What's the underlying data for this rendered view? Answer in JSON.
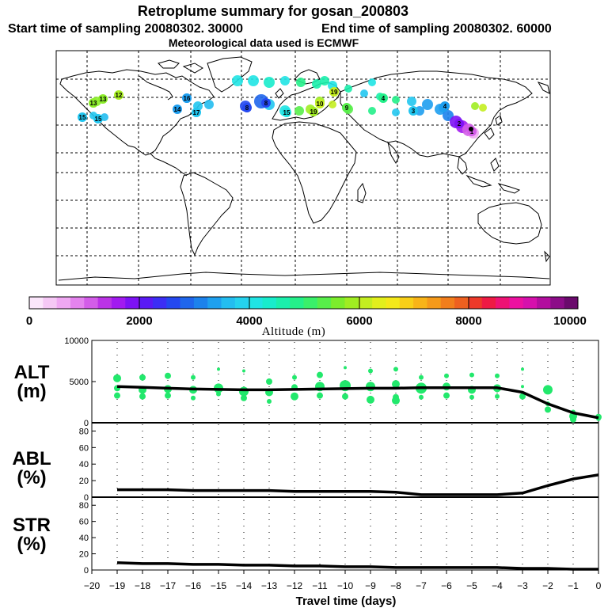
{
  "header": {
    "title": "Retroplume summary for gosan_200803",
    "start_label": "Start time of sampling 20080302. 30000",
    "end_label": "End time of sampling 20080302. 60000",
    "met_label": "Meteorological data used is ECMWF"
  },
  "colorbar": {
    "label": "Altitude (m)",
    "range": [
      0,
      10000
    ],
    "ticks": [
      "0",
      "2000",
      "4000",
      "6000",
      "8000",
      "10000"
    ],
    "colors": [
      "#fbe6fb",
      "#f5c8f5",
      "#efa8f2",
      "#e483ee",
      "#d35de8",
      "#bb33e6",
      "#a21af0",
      "#7d12f5",
      "#5a1af5",
      "#3c2ef5",
      "#2448f0",
      "#1f66ec",
      "#1c82ec",
      "#1ea0ef",
      "#23bdf0",
      "#25d2ee",
      "#20e4e4",
      "#18eccc",
      "#1aefac",
      "#24f08a",
      "#3af06a",
      "#58ee4a",
      "#7ced2c",
      "#a0ed22",
      "#c4ee20",
      "#e2ef1c",
      "#f4e81a",
      "#f8cf18",
      "#f8b418",
      "#f59a1a",
      "#f27e1c",
      "#ee6020",
      "#ed3a2a",
      "#ee1a44",
      "#ee1274",
      "#ec10a0",
      "#d610ac",
      "#b20e9e",
      "#8c0c88",
      "#6a0a6c"
    ]
  },
  "map": {
    "receptor": "gosan",
    "labels": [
      {
        "text": "13",
        "c": "#8ced2a"
      },
      {
        "text": "13",
        "c": "#8ced2a"
      },
      {
        "text": "12",
        "c": "#a8ee22"
      },
      {
        "text": "15",
        "c": "#22c6f0"
      },
      {
        "text": "15",
        "c": "#22c6f0"
      },
      {
        "text": "16",
        "c": "#1e9eef"
      },
      {
        "text": "14",
        "c": "#1e9eef"
      },
      {
        "text": "17",
        "c": "#22c6f0"
      },
      {
        "text": "8",
        "c": "#2448f0"
      },
      {
        "text": "8",
        "c": "#2448f0"
      },
      {
        "text": "15",
        "c": "#20e4e4"
      },
      {
        "text": "19",
        "c": "#a0ed22"
      },
      {
        "text": "10",
        "c": "#c4ee20"
      },
      {
        "text": "9",
        "c": "#58ee4a"
      },
      {
        "text": "4",
        "c": "#24f08a"
      },
      {
        "text": "3",
        "c": "#22c6f0"
      },
      {
        "text": "4",
        "c": "#1e9eef"
      },
      {
        "text": "2",
        "c": "#7d12f5"
      },
      {
        "text": "1",
        "c": "#d35de8"
      },
      {
        "text": "19",
        "c": "#c4ee20"
      }
    ]
  },
  "chart_data": [
    {
      "type": "scatter",
      "name": "ALT",
      "ylabel": "ALT (m)",
      "ylim": [
        0,
        10000
      ],
      "yticks": [
        "0",
        "5000",
        "10000"
      ],
      "x": [
        -19,
        -18,
        -17,
        -16,
        -15,
        -14,
        -13,
        -12,
        -11,
        -10,
        -9,
        -8,
        -7,
        -6,
        -5,
        -4,
        -3,
        -2,
        -1,
        0
      ],
      "mean_line": [
        4400,
        4300,
        4200,
        4100,
        4050,
        4000,
        4000,
        4050,
        4100,
        4150,
        4200,
        4200,
        4250,
        4250,
        4250,
        4250,
        3700,
        2300,
        1200,
        600
      ],
      "points": [
        [
          -19,
          5400,
          5
        ],
        [
          -19,
          4200,
          4
        ],
        [
          -19,
          3300,
          4
        ],
        [
          -18,
          5500,
          4
        ],
        [
          -18,
          4000,
          5
        ],
        [
          -18,
          3200,
          4
        ],
        [
          -17,
          5700,
          4
        ],
        [
          -17,
          4100,
          5
        ],
        [
          -17,
          3300,
          4
        ],
        [
          -16,
          5500,
          3
        ],
        [
          -16,
          4000,
          5
        ],
        [
          -16,
          3000,
          3
        ],
        [
          -15,
          6500,
          2
        ],
        [
          -15,
          4200,
          6
        ],
        [
          -15,
          3500,
          3
        ],
        [
          -14,
          6300,
          2
        ],
        [
          -14,
          3800,
          6
        ],
        [
          -14,
          3000,
          4
        ],
        [
          -13,
          5000,
          4
        ],
        [
          -13,
          3700,
          5
        ],
        [
          -13,
          2600,
          3
        ],
        [
          -12,
          5500,
          3
        ],
        [
          -12,
          4300,
          4
        ],
        [
          -12,
          3200,
          5
        ],
        [
          -11,
          5800,
          4
        ],
        [
          -11,
          4400,
          6
        ],
        [
          -11,
          3300,
          4
        ],
        [
          -10,
          6700,
          2
        ],
        [
          -10,
          4500,
          7
        ],
        [
          -10,
          3200,
          4
        ],
        [
          -9,
          6300,
          3
        ],
        [
          -9,
          4400,
          6
        ],
        [
          -9,
          2800,
          5
        ],
        [
          -8,
          6500,
          3
        ],
        [
          -8,
          4700,
          5
        ],
        [
          -8,
          3100,
          4
        ],
        [
          -8,
          2700,
          5
        ],
        [
          -7,
          5500,
          3
        ],
        [
          -7,
          4200,
          7
        ],
        [
          -7,
          3100,
          3
        ],
        [
          -6,
          5700,
          3
        ],
        [
          -6,
          4400,
          5
        ],
        [
          -6,
          3300,
          4
        ],
        [
          -5,
          5800,
          3
        ],
        [
          -5,
          4000,
          5
        ],
        [
          -5,
          3100,
          3
        ],
        [
          -4,
          5700,
          3
        ],
        [
          -4,
          4200,
          5
        ],
        [
          -4,
          3200,
          3
        ],
        [
          -3,
          6500,
          2
        ],
        [
          -3,
          4400,
          2
        ],
        [
          -3,
          3200,
          4
        ],
        [
          -2,
          4000,
          6
        ],
        [
          -2,
          2300,
          3
        ],
        [
          -2,
          1600,
          4
        ],
        [
          -1,
          1300,
          3
        ],
        [
          -1,
          800,
          5
        ],
        [
          -1,
          400,
          4
        ],
        [
          0,
          700,
          4
        ],
        [
          0,
          500,
          3
        ]
      ]
    },
    {
      "type": "line",
      "name": "ABL",
      "ylabel": "ABL (%)",
      "ylim": [
        0,
        90
      ],
      "yticks": [
        "0",
        "20",
        "40",
        "60",
        "80"
      ],
      "x": [
        -19,
        -18,
        -17,
        -16,
        -15,
        -14,
        -13,
        -12,
        -11,
        -10,
        -9,
        -8,
        -7,
        -6,
        -5,
        -4,
        -3,
        -2,
        -1,
        0
      ],
      "values": [
        9,
        9,
        9,
        8,
        8,
        8,
        8,
        7,
        7,
        7,
        7,
        6,
        3,
        3,
        3,
        3,
        5,
        14,
        22,
        27
      ]
    },
    {
      "type": "line",
      "name": "STR",
      "ylabel": "STR (%)",
      "ylim": [
        0,
        90
      ],
      "yticks": [
        "0",
        "20",
        "40",
        "60",
        "80"
      ],
      "x": [
        -19,
        -18,
        -17,
        -16,
        -15,
        -14,
        -13,
        -12,
        -11,
        -10,
        -9,
        -8,
        -7,
        -6,
        -5,
        -4,
        -3,
        -2,
        -1,
        0
      ],
      "values": [
        9,
        8,
        8,
        7,
        7,
        6,
        6,
        5,
        5,
        4,
        4,
        3,
        3,
        3,
        3,
        3,
        2,
        2,
        1,
        1
      ]
    }
  ],
  "xaxis": {
    "label": "Travel time (days)",
    "ticks": [
      "−20",
      "−19",
      "−18",
      "−17",
      "−16",
      "−15",
      "−14",
      "−13",
      "−12",
      "−11",
      "−10",
      "−9",
      "−8",
      "−7",
      "−6",
      "−5",
      "−4",
      "−3",
      "−2",
      "−1",
      "0"
    ]
  },
  "panels": {
    "alt": {
      "name": "ALT",
      "unit": "(m)"
    },
    "abl": {
      "name": "ABL",
      "unit": "(%)"
    },
    "str": {
      "name": "STR",
      "unit": "(%)"
    }
  }
}
